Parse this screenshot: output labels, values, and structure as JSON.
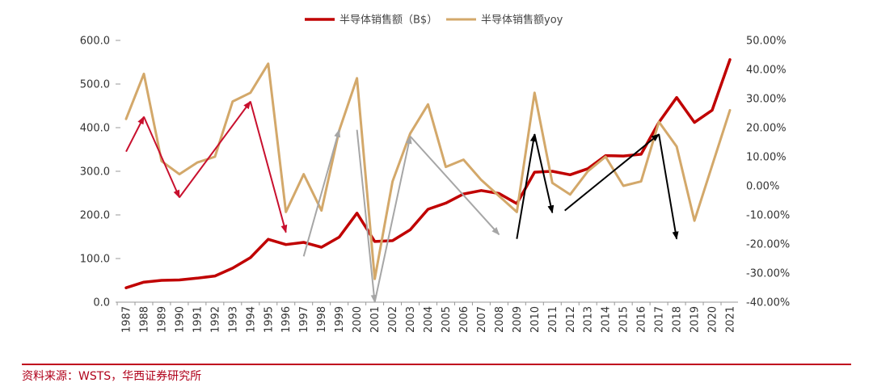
{
  "chart_data": {
    "type": "line",
    "categories": [
      "1987",
      "1988",
      "1989",
      "1990",
      "1991",
      "1992",
      "1993",
      "1994",
      "1995",
      "1996",
      "1997",
      "1998",
      "1999",
      "2000",
      "2001",
      "2002",
      "2003",
      "2004",
      "2005",
      "2006",
      "2007",
      "2008",
      "2009",
      "2010",
      "2011",
      "2012",
      "2013",
      "2014",
      "2015",
      "2016",
      "2017",
      "2018",
      "2019",
      "2020",
      "2021"
    ],
    "series": [
      {
        "name": "半导体销售额（B$）",
        "axis": "left",
        "color": "#c00000",
        "values": [
          33,
          46,
          50,
          51,
          55,
          60,
          78,
          102,
          144,
          132,
          137,
          126,
          149,
          204,
          139,
          141,
          166,
          213,
          227,
          248,
          256,
          249,
          226,
          298,
          300,
          292,
          306,
          336,
          335,
          339,
          412,
          469,
          412,
          440,
          556
        ]
      },
      {
        "name": "半导体销售额yoy",
        "axis": "right",
        "color": "#d3a86a",
        "values": [
          23,
          38.5,
          8.5,
          4,
          8,
          10,
          29,
          32,
          42,
          -9,
          4,
          -8.5,
          19,
          37,
          -32,
          1.5,
          18,
          28,
          6.5,
          9,
          2,
          -3.5,
          -9,
          32,
          1,
          -3,
          5,
          10,
          0,
          1.5,
          22,
          13.5,
          -12,
          7,
          26
        ]
      }
    ],
    "yleft": {
      "min": 0,
      "max": 600,
      "step": 100,
      "tick_labels": [
        "0.0",
        "100.0",
        "200.0",
        "300.0",
        "400.0",
        "500.0",
        "600.0"
      ]
    },
    "yright": {
      "min": -40,
      "max": 50,
      "step": 10,
      "tick_labels": [
        "-40.00%",
        "-30.00%",
        "-20.00%",
        "-10.00%",
        "0.00%",
        "10.00%",
        "20.00%",
        "30.00%",
        "40.00%",
        "50.00%"
      ]
    },
    "legend": {
      "position": "top-center"
    },
    "grid": false,
    "annotations": {
      "note": "trend arrows drawn over the chart; endpoints in data units (year, left-axis value)",
      "red_arrows": [
        {
          "from": [
            "1987",
            345
          ],
          "to": [
            "1988",
            425
          ]
        },
        {
          "from": [
            "1988",
            425
          ],
          "to": [
            "1990",
            240
          ]
        },
        {
          "from": [
            "1990",
            240
          ],
          "to": [
            "1994",
            460
          ]
        },
        {
          "from": [
            "1994",
            460
          ],
          "to": [
            "1996",
            160
          ]
        }
      ],
      "gray_arrows": [
        {
          "from": [
            "1997",
            105
          ],
          "to": [
            "1999",
            395
          ]
        },
        {
          "from": [
            "2000",
            395
          ],
          "to": [
            "2001",
            0
          ]
        },
        {
          "from": [
            "2001",
            0
          ],
          "to": [
            "2003",
            380
          ]
        },
        {
          "from": [
            "2003",
            380
          ],
          "to": [
            "2008",
            155
          ]
        }
      ],
      "black_arrows": [
        {
          "from": [
            "2009",
            145
          ],
          "to": [
            "2010",
            385
          ]
        },
        {
          "from": [
            "2010",
            385
          ],
          "to": [
            "2011",
            205
          ]
        },
        {
          "from": [
            "2011.7",
            210
          ],
          "to": [
            "2017",
            385
          ]
        },
        {
          "from": [
            "2017",
            385
          ],
          "to": [
            "2018",
            145
          ]
        }
      ]
    }
  },
  "source": "资料来源：WSTS，华西证券研究所"
}
